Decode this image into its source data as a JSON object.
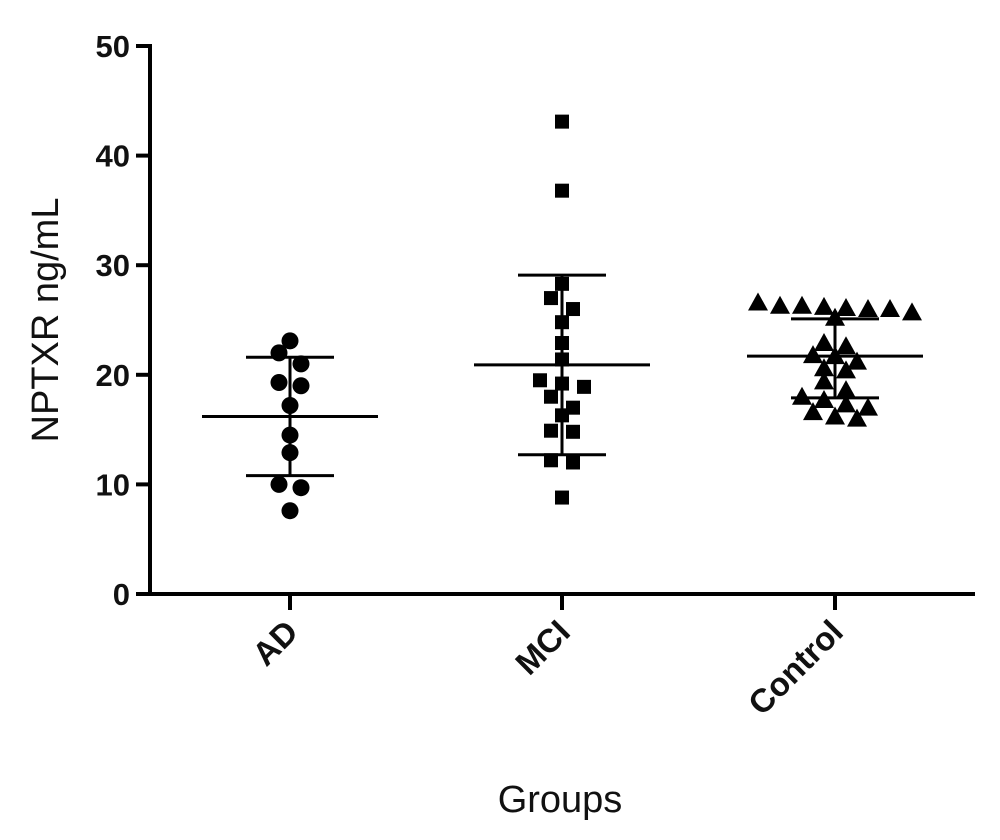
{
  "chart_data": {
    "type": "scatter",
    "xlabel": "Groups",
    "ylabel": "NPTXR ng/mL",
    "ylim": [
      0,
      50
    ],
    "yticks": [
      0,
      10,
      20,
      30,
      40,
      50
    ],
    "categories": [
      "AD",
      "MCI",
      "Control"
    ],
    "grid": false,
    "groups": [
      {
        "name": "AD",
        "marker": "circle",
        "mean": 16.2,
        "sd_upper": 21.6,
        "sd_lower": 10.8,
        "values": [
          23.1,
          22.0,
          21.0,
          19.3,
          19.0,
          17.2,
          14.5,
          12.9,
          10.0,
          9.7,
          7.6
        ]
      },
      {
        "name": "MCI",
        "marker": "square",
        "mean": 20.9,
        "sd_upper": 29.1,
        "sd_lower": 12.7,
        "values": [
          43.1,
          36.8,
          28.3,
          27.0,
          26.0,
          24.8,
          22.9,
          21.4,
          19.5,
          19.2,
          18.9,
          18.0,
          17.0,
          16.3,
          14.9,
          14.8,
          12.2,
          12.0,
          8.8
        ]
      },
      {
        "name": "Control",
        "marker": "triangle",
        "mean": 21.7,
        "sd_upper": 25.1,
        "sd_lower": 17.9,
        "values": [
          26.6,
          26.2,
          26.0,
          26.0,
          25.7,
          25.2,
          26.1,
          26.3,
          26.3,
          22.9,
          22.6,
          21.8,
          21.7,
          20.6,
          20.4,
          21.2,
          19.4,
          18.6,
          18.0,
          17.7,
          17.3,
          17.0,
          16.6,
          16.2,
          16.0
        ]
      }
    ]
  }
}
